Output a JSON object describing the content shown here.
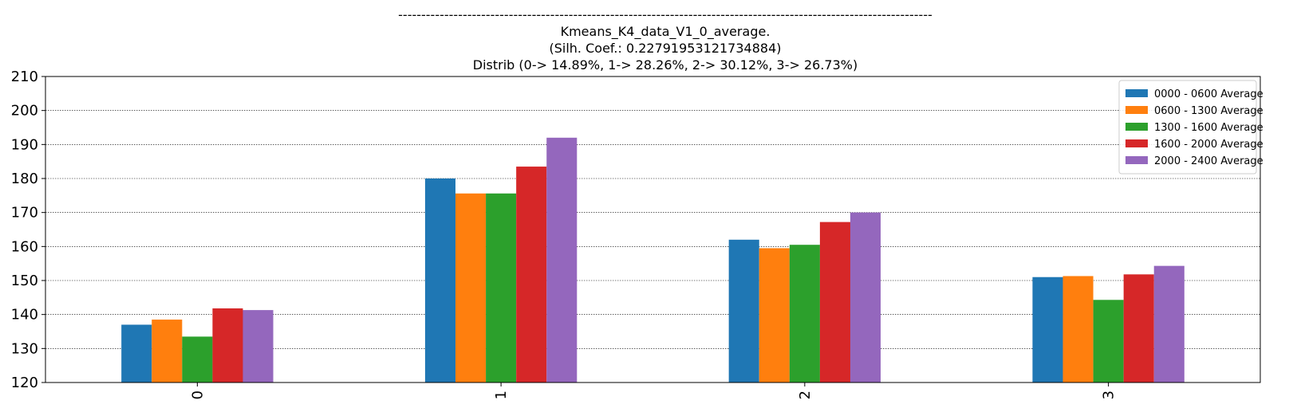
{
  "chart_data": {
    "type": "bar",
    "title_lines": [
      "--------------------------------------------------------------------------------------------------------------------",
      "Kmeans_K4_data_V1_0_average.",
      "(Silh. Coef.: 0.22791953121734884)",
      "Distrib (0-> 14.89%, 1-> 28.26%, 2-> 30.12%, 3-> 26.73%)"
    ],
    "categories": [
      "0",
      "1",
      "2",
      "3"
    ],
    "series": [
      {
        "name": "0000 - 0600 Average",
        "color": "#1f77b4",
        "values": [
          137.0,
          180.0,
          162.0,
          151.0
        ]
      },
      {
        "name": "0600 - 1300 Average",
        "color": "#ff7f0e",
        "values": [
          138.5,
          175.6,
          159.5,
          151.3
        ]
      },
      {
        "name": "1300 - 1600 Average",
        "color": "#2ca02c",
        "values": [
          133.5,
          175.6,
          160.5,
          144.3
        ]
      },
      {
        "name": "1600 - 2000 Average",
        "color": "#d62728",
        "values": [
          141.8,
          183.5,
          167.2,
          151.8
        ]
      },
      {
        "name": "2000 - 2400 Average",
        "color": "#9467bd",
        "values": [
          141.3,
          192.0,
          170.0,
          154.3
        ]
      }
    ],
    "ylim": [
      120,
      210
    ],
    "yticks": [
      120,
      130,
      140,
      150,
      160,
      170,
      180,
      190,
      200,
      210
    ],
    "grid": "y-dotted",
    "legend_position": "top-right",
    "xlabel": "",
    "ylabel": ""
  }
}
